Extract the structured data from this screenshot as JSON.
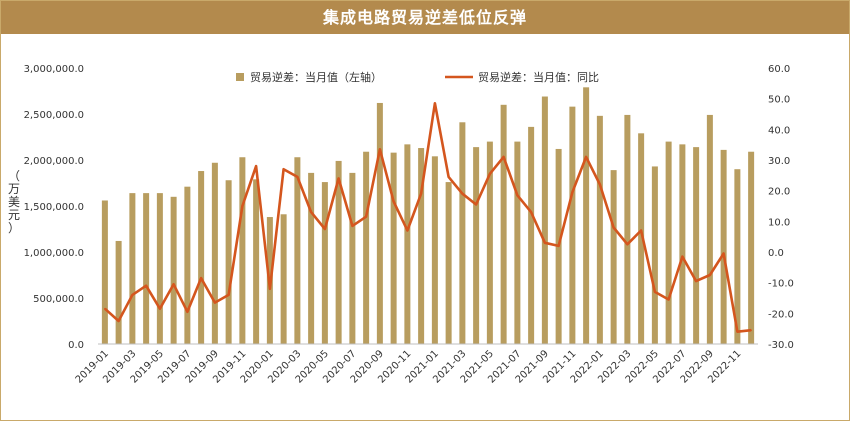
{
  "colors": {
    "title_bg": "#b38a4d",
    "bar": "#b89d5f",
    "line": "#d4561e"
  },
  "chart_data": {
    "type": "bar+line",
    "title": "集成电路贸易逆差低位反弹",
    "ylabel_left": "（万美元）",
    "left_ticks": [
      "0.0",
      "500,000.0",
      "1,000,000.0",
      "1,500,000.0",
      "2,000,000.0",
      "2,500,000.0",
      "3,000,000.0"
    ],
    "right_ticks": [
      "-30.0",
      "-20.0",
      "-10.0",
      "0.0",
      "10.0",
      "20.0",
      "30.0",
      "40.0",
      "50.0",
      "60.0"
    ],
    "y_left_range": [
      0,
      3000000
    ],
    "y_right_range": [
      -30,
      60
    ],
    "legend_position": "top",
    "x": [
      "2019-01",
      "2019-02",
      "2019-03",
      "2019-04",
      "2019-05",
      "2019-06",
      "2019-07",
      "2019-08",
      "2019-09",
      "2019-10",
      "2019-11",
      "2019-12",
      "2020-01",
      "2020-02",
      "2020-03",
      "2020-04",
      "2020-05",
      "2020-06",
      "2020-07",
      "2020-08",
      "2020-09",
      "2020-10",
      "2020-11",
      "2020-12",
      "2021-01",
      "2021-02",
      "2021-03",
      "2021-04",
      "2021-05",
      "2021-06",
      "2021-07",
      "2021-08",
      "2021-09",
      "2021-10",
      "2021-11",
      "2021-12",
      "2022-01",
      "2022-02",
      "2022-03",
      "2022-04",
      "2022-05",
      "2022-06",
      "2022-07",
      "2022-08",
      "2022-09",
      "2022-10",
      "2022-11",
      "2022-12"
    ],
    "x_tick_labels": [
      "2019-01",
      "2019-03",
      "2019-05",
      "2019-07",
      "2019-09",
      "2019-11",
      "2020-01",
      "2020-03",
      "2020-05",
      "2020-07",
      "2020-09",
      "2020-11",
      "2021-01",
      "2021-03",
      "2021-05",
      "2021-07",
      "2021-09",
      "2021-11",
      "2022-01",
      "2022-03",
      "2022-05",
      "2022-07",
      "2022-09",
      "2022-11"
    ],
    "series": [
      {
        "name": "贸易逆差：当月值（左轴）",
        "axis": "left",
        "kind": "bar",
        "values": [
          1560000,
          1120000,
          1640000,
          1640000,
          1640000,
          1600000,
          1710000,
          1880000,
          1970000,
          1780000,
          2030000,
          1790000,
          1380000,
          1410000,
          2030000,
          1860000,
          1760000,
          1990000,
          1860000,
          2090000,
          2620000,
          2080000,
          2170000,
          2130000,
          2040000,
          1760000,
          2410000,
          2140000,
          2200000,
          2600000,
          2200000,
          2360000,
          2690000,
          2120000,
          2580000,
          2790000,
          2480000,
          1890000,
          2490000,
          2290000,
          1930000,
          2200000,
          2170000,
          2140000,
          2490000,
          2110000,
          1900000,
          2090000
        ]
      },
      {
        "name": "贸易逆差：当月值：同比",
        "axis": "right",
        "kind": "line",
        "values": [
          -18.5,
          -22.5,
          -14,
          -11,
          -18.5,
          -10.5,
          -19.5,
          -8.5,
          -16.5,
          -14,
          15,
          28,
          -12,
          27,
          24.5,
          13,
          7.5,
          24,
          8.5,
          11.5,
          33.5,
          16.5,
          7,
          19,
          48.5,
          24.5,
          19,
          15.5,
          25.5,
          31,
          18.5,
          13,
          3,
          2,
          19.5,
          31,
          22,
          8,
          2.5,
          7,
          -13,
          -15.5,
          -1.5,
          -9.5,
          -7.5,
          -0.5,
          -26,
          -25.5
        ]
      }
    ]
  }
}
